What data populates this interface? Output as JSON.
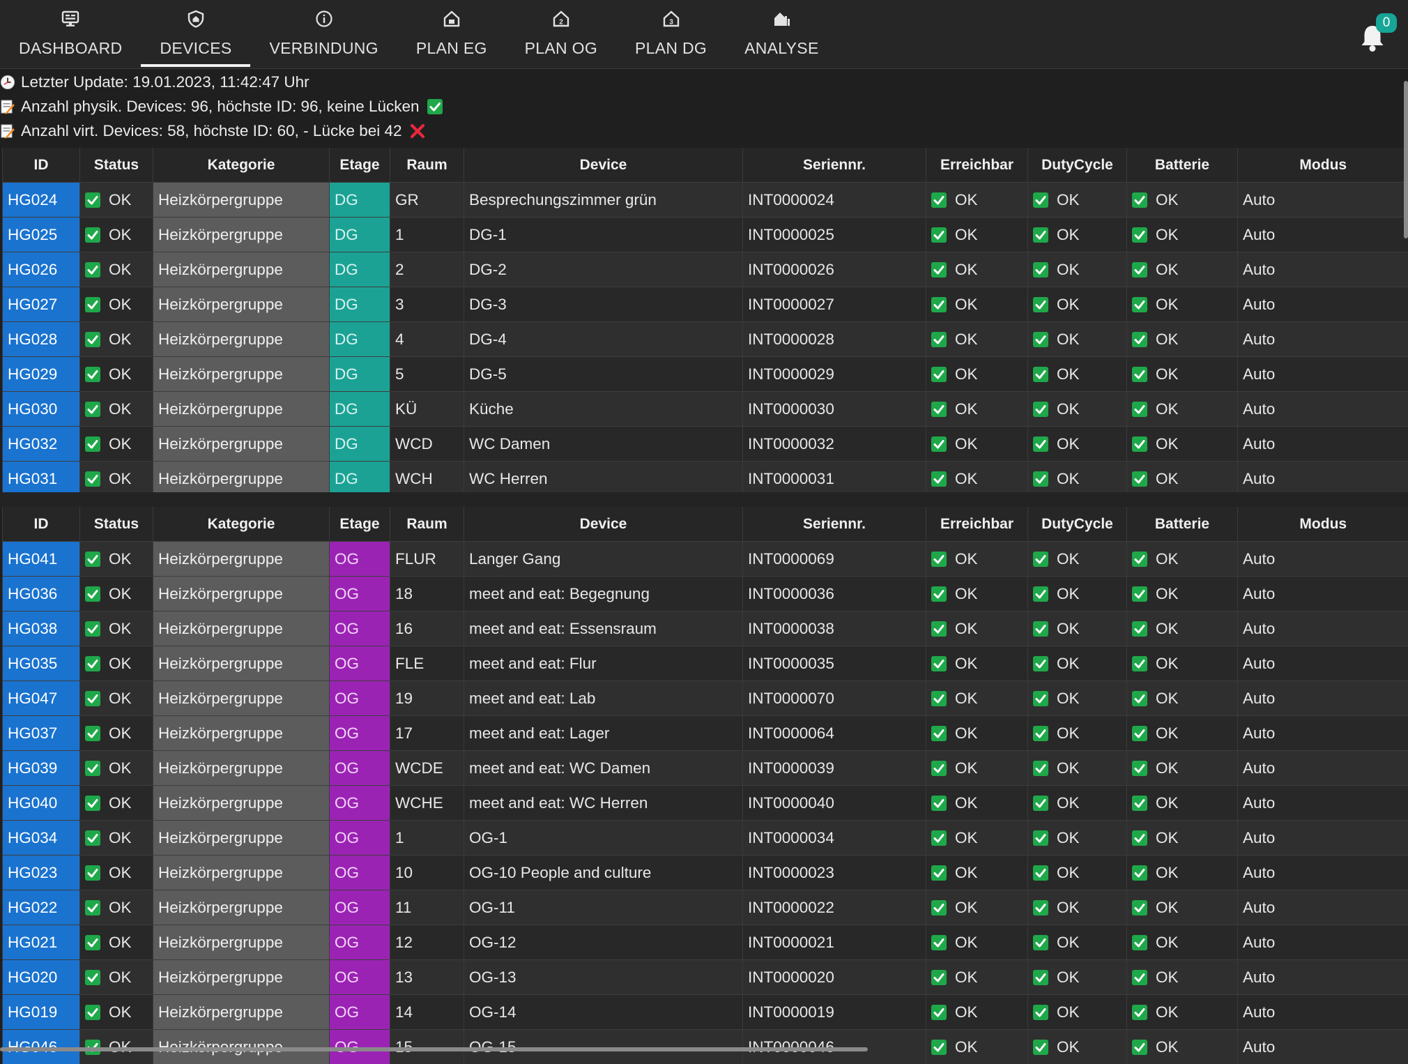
{
  "nav": {
    "items": [
      {
        "label": "DASHBOARD",
        "icon": "dashboard-icon"
      },
      {
        "label": "DEVICES",
        "icon": "shield-icon",
        "active": true
      },
      {
        "label": "VERBINDUNG",
        "icon": "info-icon"
      },
      {
        "label": "PLAN EG",
        "icon": "house-ground-floor-icon"
      },
      {
        "label": "PLAN OG",
        "icon": "house-upper-floor-icon"
      },
      {
        "label": "PLAN DG",
        "icon": "house-attic-icon"
      },
      {
        "label": "ANALYSE",
        "icon": "house-analysis-icon"
      }
    ],
    "notifications": {
      "count": "0",
      "icon": "bell-icon"
    }
  },
  "info": {
    "last_update": "Letzter Update: 19.01.2023, 11:42:47 Uhr",
    "physical": "Anzahl physik. Devices: 96, höchste ID: 96, keine Lücken",
    "virtual": "Anzahl virt. Devices: 58, höchste ID: 60, - Lücke bei 42"
  },
  "columns": [
    "ID",
    "Status",
    "Kategorie",
    "Etage",
    "Raum",
    "Device",
    "Seriennr.",
    "Erreichbar",
    "DutyCycle",
    "Batterie",
    "Modus"
  ],
  "colors": {
    "id": "#1a73cf",
    "dg": "#1ba295",
    "og": "#9b23b4",
    "check": "#1fa84a",
    "cross": "#e8283c",
    "badge": "#16a596"
  },
  "tables": [
    {
      "rows": [
        {
          "id": "HG024",
          "status": "OK",
          "kategorie": "Heizkörpergruppe",
          "etage": "DG",
          "raum": "GR",
          "device": "Besprechungszimmer grün",
          "serial": "INT0000024",
          "erreichbar": "OK",
          "dutycycle": "OK",
          "batterie": "OK",
          "modus": "Auto"
        },
        {
          "id": "HG025",
          "status": "OK",
          "kategorie": "Heizkörpergruppe",
          "etage": "DG",
          "raum": "1",
          "device": "DG-1",
          "serial": "INT0000025",
          "erreichbar": "OK",
          "dutycycle": "OK",
          "batterie": "OK",
          "modus": "Auto"
        },
        {
          "id": "HG026",
          "status": "OK",
          "kategorie": "Heizkörpergruppe",
          "etage": "DG",
          "raum": "2",
          "device": "DG-2",
          "serial": "INT0000026",
          "erreichbar": "OK",
          "dutycycle": "OK",
          "batterie": "OK",
          "modus": "Auto"
        },
        {
          "id": "HG027",
          "status": "OK",
          "kategorie": "Heizkörpergruppe",
          "etage": "DG",
          "raum": "3",
          "device": "DG-3",
          "serial": "INT0000027",
          "erreichbar": "OK",
          "dutycycle": "OK",
          "batterie": "OK",
          "modus": "Auto"
        },
        {
          "id": "HG028",
          "status": "OK",
          "kategorie": "Heizkörpergruppe",
          "etage": "DG",
          "raum": "4",
          "device": "DG-4",
          "serial": "INT0000028",
          "erreichbar": "OK",
          "dutycycle": "OK",
          "batterie": "OK",
          "modus": "Auto"
        },
        {
          "id": "HG029",
          "status": "OK",
          "kategorie": "Heizkörpergruppe",
          "etage": "DG",
          "raum": "5",
          "device": "DG-5",
          "serial": "INT0000029",
          "erreichbar": "OK",
          "dutycycle": "OK",
          "batterie": "OK",
          "modus": "Auto"
        },
        {
          "id": "HG030",
          "status": "OK",
          "kategorie": "Heizkörpergruppe",
          "etage": "DG",
          "raum": "KÜ",
          "device": "Küche",
          "serial": "INT0000030",
          "erreichbar": "OK",
          "dutycycle": "OK",
          "batterie": "OK",
          "modus": "Auto"
        },
        {
          "id": "HG032",
          "status": "OK",
          "kategorie": "Heizkörpergruppe",
          "etage": "DG",
          "raum": "WCD",
          "device": "WC Damen",
          "serial": "INT0000032",
          "erreichbar": "OK",
          "dutycycle": "OK",
          "batterie": "OK",
          "modus": "Auto"
        },
        {
          "id": "HG031",
          "status": "OK",
          "kategorie": "Heizkörpergruppe",
          "etage": "DG",
          "raum": "WCH",
          "device": "WC Herren",
          "serial": "INT0000031",
          "erreichbar": "OK",
          "dutycycle": "OK",
          "batterie": "OK",
          "modus": "Auto"
        }
      ]
    },
    {
      "rows": [
        {
          "id": "HG041",
          "status": "OK",
          "kategorie": "Heizkörpergruppe",
          "etage": "OG",
          "raum": "FLUR",
          "device": "Langer Gang",
          "serial": "INT0000069",
          "erreichbar": "OK",
          "dutycycle": "OK",
          "batterie": "OK",
          "modus": "Auto"
        },
        {
          "id": "HG036",
          "status": "OK",
          "kategorie": "Heizkörpergruppe",
          "etage": "OG",
          "raum": "18",
          "device": "meet and eat: Begegnung",
          "serial": "INT0000036",
          "erreichbar": "OK",
          "dutycycle": "OK",
          "batterie": "OK",
          "modus": "Auto"
        },
        {
          "id": "HG038",
          "status": "OK",
          "kategorie": "Heizkörpergruppe",
          "etage": "OG",
          "raum": "16",
          "device": "meet and eat: Essensraum",
          "serial": "INT0000038",
          "erreichbar": "OK",
          "dutycycle": "OK",
          "batterie": "OK",
          "modus": "Auto"
        },
        {
          "id": "HG035",
          "status": "OK",
          "kategorie": "Heizkörpergruppe",
          "etage": "OG",
          "raum": "FLE",
          "device": "meet and eat: Flur",
          "serial": "INT0000035",
          "erreichbar": "OK",
          "dutycycle": "OK",
          "batterie": "OK",
          "modus": "Auto"
        },
        {
          "id": "HG047",
          "status": "OK",
          "kategorie": "Heizkörpergruppe",
          "etage": "OG",
          "raum": "19",
          "device": "meet and eat: Lab",
          "serial": "INT0000070",
          "erreichbar": "OK",
          "dutycycle": "OK",
          "batterie": "OK",
          "modus": "Auto"
        },
        {
          "id": "HG037",
          "status": "OK",
          "kategorie": "Heizkörpergruppe",
          "etage": "OG",
          "raum": "17",
          "device": "meet and eat: Lager",
          "serial": "INT0000064",
          "erreichbar": "OK",
          "dutycycle": "OK",
          "batterie": "OK",
          "modus": "Auto"
        },
        {
          "id": "HG039",
          "status": "OK",
          "kategorie": "Heizkörpergruppe",
          "etage": "OG",
          "raum": "WCDE",
          "device": "meet and eat: WC Damen",
          "serial": "INT0000039",
          "erreichbar": "OK",
          "dutycycle": "OK",
          "batterie": "OK",
          "modus": "Auto"
        },
        {
          "id": "HG040",
          "status": "OK",
          "kategorie": "Heizkörpergruppe",
          "etage": "OG",
          "raum": "WCHE",
          "device": "meet and eat: WC Herren",
          "serial": "INT0000040",
          "erreichbar": "OK",
          "dutycycle": "OK",
          "batterie": "OK",
          "modus": "Auto"
        },
        {
          "id": "HG034",
          "status": "OK",
          "kategorie": "Heizkörpergruppe",
          "etage": "OG",
          "raum": "1",
          "device": "OG-1",
          "serial": "INT0000034",
          "erreichbar": "OK",
          "dutycycle": "OK",
          "batterie": "OK",
          "modus": "Auto"
        },
        {
          "id": "HG023",
          "status": "OK",
          "kategorie": "Heizkörpergruppe",
          "etage": "OG",
          "raum": "10",
          "device": "OG-10 People and culture",
          "serial": "INT0000023",
          "erreichbar": "OK",
          "dutycycle": "OK",
          "batterie": "OK",
          "modus": "Auto"
        },
        {
          "id": "HG022",
          "status": "OK",
          "kategorie": "Heizkörpergruppe",
          "etage": "OG",
          "raum": "11",
          "device": "OG-11",
          "serial": "INT0000022",
          "erreichbar": "OK",
          "dutycycle": "OK",
          "batterie": "OK",
          "modus": "Auto"
        },
        {
          "id": "HG021",
          "status": "OK",
          "kategorie": "Heizkörpergruppe",
          "etage": "OG",
          "raum": "12",
          "device": "OG-12",
          "serial": "INT0000021",
          "erreichbar": "OK",
          "dutycycle": "OK",
          "batterie": "OK",
          "modus": "Auto"
        },
        {
          "id": "HG020",
          "status": "OK",
          "kategorie": "Heizkörpergruppe",
          "etage": "OG",
          "raum": "13",
          "device": "OG-13",
          "serial": "INT0000020",
          "erreichbar": "OK",
          "dutycycle": "OK",
          "batterie": "OK",
          "modus": "Auto"
        },
        {
          "id": "HG019",
          "status": "OK",
          "kategorie": "Heizkörpergruppe",
          "etage": "OG",
          "raum": "14",
          "device": "OG-14",
          "serial": "INT0000019",
          "erreichbar": "OK",
          "dutycycle": "OK",
          "batterie": "OK",
          "modus": "Auto"
        },
        {
          "id": "HG046",
          "status": "OK",
          "kategorie": "Heizkörpergruppe",
          "etage": "OG",
          "raum": "15",
          "device": "OG-15",
          "serial": "INT0000046",
          "erreichbar": "OK",
          "dutycycle": "OK",
          "batterie": "OK",
          "modus": "Auto"
        }
      ]
    }
  ]
}
